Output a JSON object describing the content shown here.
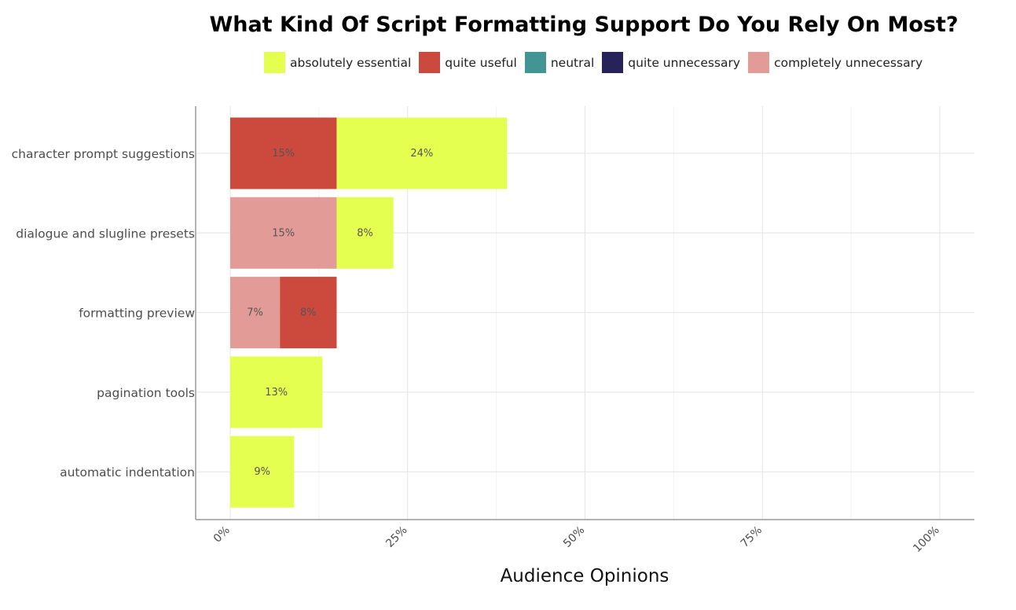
{
  "chart_data": {
    "type": "bar",
    "orientation": "horizontal",
    "stacked": true,
    "title": "What Kind Of Script Formatting Support Do You Rely On Most?",
    "xlabel": "Audience Opinions",
    "ylabel": "",
    "xlim": [
      0,
      100
    ],
    "x_ticks": [
      "0%",
      "25%",
      "50%",
      "75%",
      "100%"
    ],
    "categories": [
      "character prompt suggestions",
      "dialogue and slugline presets",
      "formatting preview",
      "pagination tools",
      "automatic indentation"
    ],
    "series": [
      {
        "name": "completely unnecessary",
        "color": "#e39b98",
        "values": [
          0,
          15,
          7,
          0,
          0
        ]
      },
      {
        "name": "quite unnecessary",
        "color": "#27235a",
        "values": [
          0,
          0,
          0,
          0,
          0
        ]
      },
      {
        "name": "neutral",
        "color": "#439594",
        "values": [
          0,
          0,
          0,
          0,
          0
        ]
      },
      {
        "name": "quite useful",
        "color": "#cc493e",
        "values": [
          15,
          0,
          8,
          0,
          0
        ]
      },
      {
        "name": "absolutely essential",
        "color": "#e5ff50",
        "values": [
          24,
          8,
          0,
          13,
          9
        ]
      }
    ],
    "legend": {
      "position": "top",
      "order": [
        "absolutely essential",
        "quite useful",
        "neutral",
        "quite unnecessary",
        "completely unnecessary"
      ]
    },
    "grid": true
  }
}
